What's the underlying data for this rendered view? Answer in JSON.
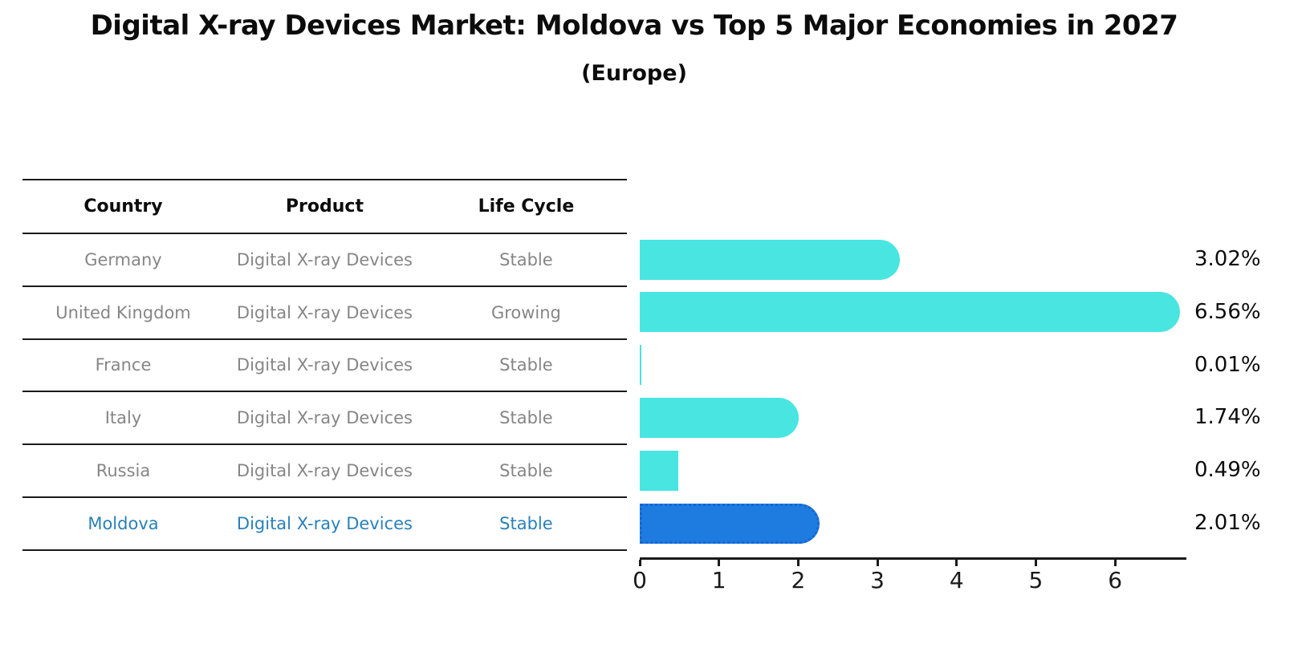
{
  "chart_data": {
    "type": "bar",
    "orientation": "horizontal",
    "title": "Digital X-ray Devices Market: Moldova vs Top 5 Major Economies in 2027",
    "subtitle": "(Europe)",
    "categories": [
      "Germany",
      "United Kingdom",
      "France",
      "Italy",
      "Russia",
      "Moldova"
    ],
    "values": [
      3.02,
      6.56,
      0.01,
      1.74,
      0.49,
      2.01
    ],
    "value_labels": [
      "3.02%",
      "6.56%",
      "0.01%",
      "1.74%",
      "0.49%",
      "2.01%"
    ],
    "xlim": [
      0,
      6.9
    ],
    "xticks": [
      0,
      1,
      2,
      3,
      4,
      5,
      6
    ],
    "xtick_labels": [
      "0",
      "1",
      "2",
      "3",
      "4",
      "5",
      "6"
    ],
    "grid": false,
    "legend": false,
    "bar_color": "#48e5e1",
    "highlight_index": 5,
    "highlight_color": "#1e7ce0",
    "highlight_border_color": "#1565d3",
    "axis_color": "#1a1a1a"
  },
  "table": {
    "headers": [
      "Country",
      "Product",
      "Life Cycle"
    ],
    "rows": [
      {
        "country": "Germany",
        "product": "Digital X-ray Devices",
        "life_cycle": "Stable",
        "highlighted": false
      },
      {
        "country": "United Kingdom",
        "product": "Digital X-ray Devices",
        "life_cycle": "Growing",
        "highlighted": false
      },
      {
        "country": "France",
        "product": "Digital X-ray Devices",
        "life_cycle": "Stable",
        "highlighted": false
      },
      {
        "country": "Italy",
        "product": "Digital X-ray Devices",
        "life_cycle": "Stable",
        "highlighted": false
      },
      {
        "country": "Russia",
        "product": "Digital X-ray Devices",
        "life_cycle": "Stable",
        "highlighted": false
      },
      {
        "country": "Moldova",
        "product": "Digital X-ray Devices",
        "life_cycle": "Stable",
        "highlighted": true
      }
    ],
    "text_color": "#868686",
    "header_text_color": "#0c0c0c",
    "highlight_text_color": "#2980b9",
    "line_color": "#1a1a1a"
  }
}
